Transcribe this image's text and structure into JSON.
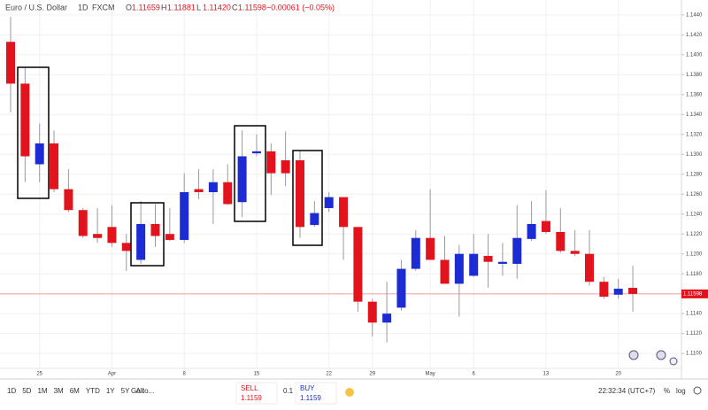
{
  "header": {
    "symbol": "Euro / U.S. Dollar",
    "interval": "1D",
    "source": "FXCM",
    "ohlc": [
      {
        "key": "O",
        "value": "1.11659"
      },
      {
        "key": "H",
        "value": "1.11881"
      },
      {
        "key": "L",
        "value": "1.11420"
      },
      {
        "key": "C",
        "value": "1.11598"
      }
    ],
    "change": "−0.00061 (−0.05%)"
  },
  "chart_data": {
    "type": "candlestick",
    "categories": [
      null,
      null,
      "25",
      null,
      null,
      null,
      null,
      "Apr",
      null,
      null,
      null,
      null,
      "8",
      null,
      null,
      null,
      null,
      "15",
      null,
      null,
      null,
      null,
      "22",
      null,
      null,
      "29",
      null,
      null,
      null,
      "May",
      null,
      null,
      "6",
      null,
      null,
      null,
      null,
      "13",
      null,
      null,
      null,
      null,
      "20",
      null
    ],
    "open": [
      1.1413,
      1.1371,
      1.129,
      1.1311,
      1.1265,
      1.1244,
      1.122,
      1.1227,
      1.1211,
      1.1194,
      1.123,
      1.122,
      1.1214,
      1.1265,
      1.1262,
      1.1272,
      1.1252,
      1.1301,
      1.1303,
      1.1294,
      1.1294,
      1.1229,
      1.1246,
      1.1257,
      1.1227,
      1.1152,
      1.1131,
      1.1146,
      1.1185,
      1.1216,
      1.1194,
      1.117,
      1.1178,
      1.1198,
      1.119,
      1.119,
      1.1215,
      1.1233,
      1.1222,
      1.1203,
      1.12,
      1.1172,
      1.1159,
      1.11659
    ],
    "high": [
      1.1438,
      1.1387,
      1.1331,
      1.1324,
      1.1285,
      1.1246,
      1.1246,
      1.1249,
      1.122,
      1.1253,
      1.125,
      1.1246,
      1.1281,
      1.1285,
      1.1285,
      1.129,
      1.1324,
      1.132,
      1.1311,
      1.1323,
      1.1304,
      1.1253,
      1.1262,
      1.1257,
      1.1227,
      1.1155,
      1.1172,
      1.1194,
      1.1224,
      1.1265,
      1.1218,
      1.1209,
      1.122,
      1.122,
      1.1211,
      1.1249,
      1.1253,
      1.1264,
      1.1246,
      1.1224,
      1.1224,
      1.1177,
      1.1175,
      1.11881
    ],
    "low": [
      1.1342,
      1.1272,
      1.1272,
      1.1262,
      1.1242,
      1.1216,
      1.1211,
      1.1207,
      1.1183,
      1.119,
      1.1207,
      1.1213,
      1.1211,
      1.1255,
      1.123,
      1.1249,
      1.1237,
      1.1298,
      1.1259,
      1.1268,
      1.1216,
      1.1227,
      1.1242,
      1.1194,
      1.1142,
      1.1117,
      1.1111,
      1.1143,
      1.1183,
      1.1194,
      1.117,
      1.1137,
      1.1177,
      1.1166,
      1.1178,
      1.1175,
      1.1213,
      1.122,
      1.1201,
      1.1198,
      1.1168,
      1.1155,
      1.1155,
      1.1142
    ],
    "close": [
      1.1371,
      1.1298,
      1.1311,
      1.1265,
      1.1244,
      1.1218,
      1.1216,
      1.1211,
      1.1203,
      1.123,
      1.1218,
      1.1214,
      1.1262,
      1.1262,
      1.1272,
      1.125,
      1.1298,
      1.1303,
      1.1281,
      1.1281,
      1.1227,
      1.1241,
      1.1257,
      1.1227,
      1.1152,
      1.1131,
      1.114,
      1.1185,
      1.1216,
      1.1194,
      1.117,
      1.12,
      1.12,
      1.1192,
      1.1192,
      1.1216,
      1.123,
      1.1222,
      1.1203,
      1.12,
      1.1172,
      1.1157,
      1.1165,
      1.11598
    ],
    "up_color": "#1c2bd4",
    "down_color": "#e2131c",
    "ylim": [
      1.1085,
      1.1455
    ],
    "yticks": [
      {
        "value": 1.11,
        "label": "1.1100"
      },
      {
        "value": 1.112,
        "label": "1.1120"
      },
      {
        "value": 1.114,
        "label": "1.1140"
      },
      {
        "value": 1.118,
        "label": "1.1180"
      },
      {
        "value": 1.12,
        "label": "1.1200"
      },
      {
        "value": 1.122,
        "label": "1.1220"
      },
      {
        "value": 1.124,
        "label": "1.1240"
      },
      {
        "value": 1.126,
        "label": "1.1260"
      },
      {
        "value": 1.128,
        "label": "1.1280"
      },
      {
        "value": 1.13,
        "label": "1.1300"
      },
      {
        "value": 1.132,
        "label": "1.1320"
      },
      {
        "value": 1.134,
        "label": "1.1340"
      },
      {
        "value": 1.136,
        "label": "1.1360"
      },
      {
        "value": 1.138,
        "label": "1.1380"
      },
      {
        "value": 1.14,
        "label": "1.1400"
      },
      {
        "value": 1.142,
        "label": "1.1420"
      },
      {
        "value": 1.144,
        "label": "1.1440"
      }
    ],
    "price_line": {
      "value": 1.11598,
      "label": "1.11598",
      "color": "#f08080"
    },
    "grid": true
  },
  "toolbar": {
    "ranges": [
      "1D",
      "5D",
      "1M",
      "3M",
      "6M",
      "YTD",
      "1Y",
      "5Y",
      "All"
    ],
    "goto": "Go to...",
    "sell": "SELL",
    "sell_price": "1.1159",
    "spread": "0.1",
    "buy": "BUY",
    "buy_price": "1.1159",
    "time": "22:32:34 (UTC+7)",
    "percent": "%",
    "log": "log"
  }
}
